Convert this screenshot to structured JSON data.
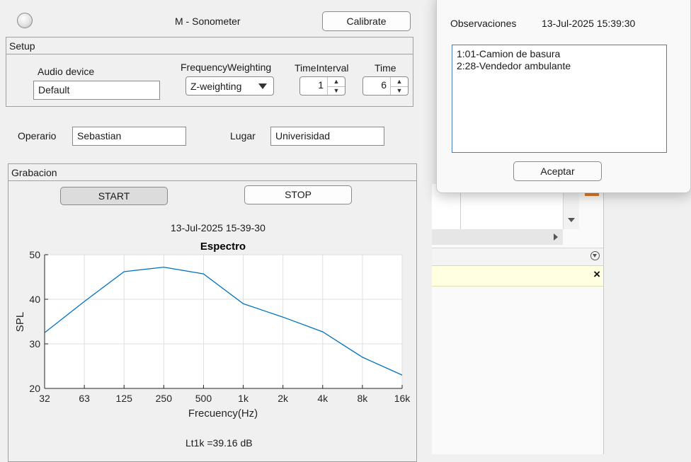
{
  "app": {
    "title": "M - Sonometer",
    "calibrate_label": "Calibrate"
  },
  "setup": {
    "title": "Setup",
    "audio_device": {
      "label": "Audio device",
      "value": "Default"
    },
    "frequency_weighting": {
      "label": "FrequencyWeighting",
      "value": "Z-weighting"
    },
    "time_interval": {
      "label": "TimeInterval",
      "value": "1"
    },
    "time": {
      "label": "Time",
      "value": "6"
    }
  },
  "operator": {
    "label": "Operario",
    "value": "Sebastian"
  },
  "place": {
    "label": "Lugar",
    "value": "Univerisidad"
  },
  "recording": {
    "title": "Grabacion",
    "start_label": "START",
    "stop_label": "STOP",
    "timestamp": "13-Jul-2025 15-39-30",
    "result": "Lt1k =39.16 dB"
  },
  "chart_data": {
    "type": "line",
    "title": "Espectro",
    "xlabel": "Frecuency(Hz)",
    "ylabel": "SPL",
    "categories": [
      "32",
      "63",
      "125",
      "250",
      "500",
      "1k",
      "2k",
      "4k",
      "8k",
      "16k"
    ],
    "values": [
      32.5,
      39.5,
      46.2,
      47.2,
      45.7,
      39.0,
      36.0,
      32.7,
      27.0,
      23.0
    ],
    "ylim": [
      20,
      50
    ],
    "yticks": [
      20,
      30,
      40,
      50
    ],
    "grid": true,
    "line_color": "#0072bd"
  },
  "dialog": {
    "label": "Observaciones",
    "timestamp": "13-Jul-2025 15:39:30",
    "lines": [
      "1:01-Camion de basura",
      "2:28-Vendedor ambulante"
    ],
    "accept_label": "Aceptar"
  },
  "colors": {
    "background": "#f0f0f0",
    "dialog_bg": "#f9f9f9",
    "accent_border": "#4a7ebb",
    "notice_bg": "#ffffe1"
  }
}
